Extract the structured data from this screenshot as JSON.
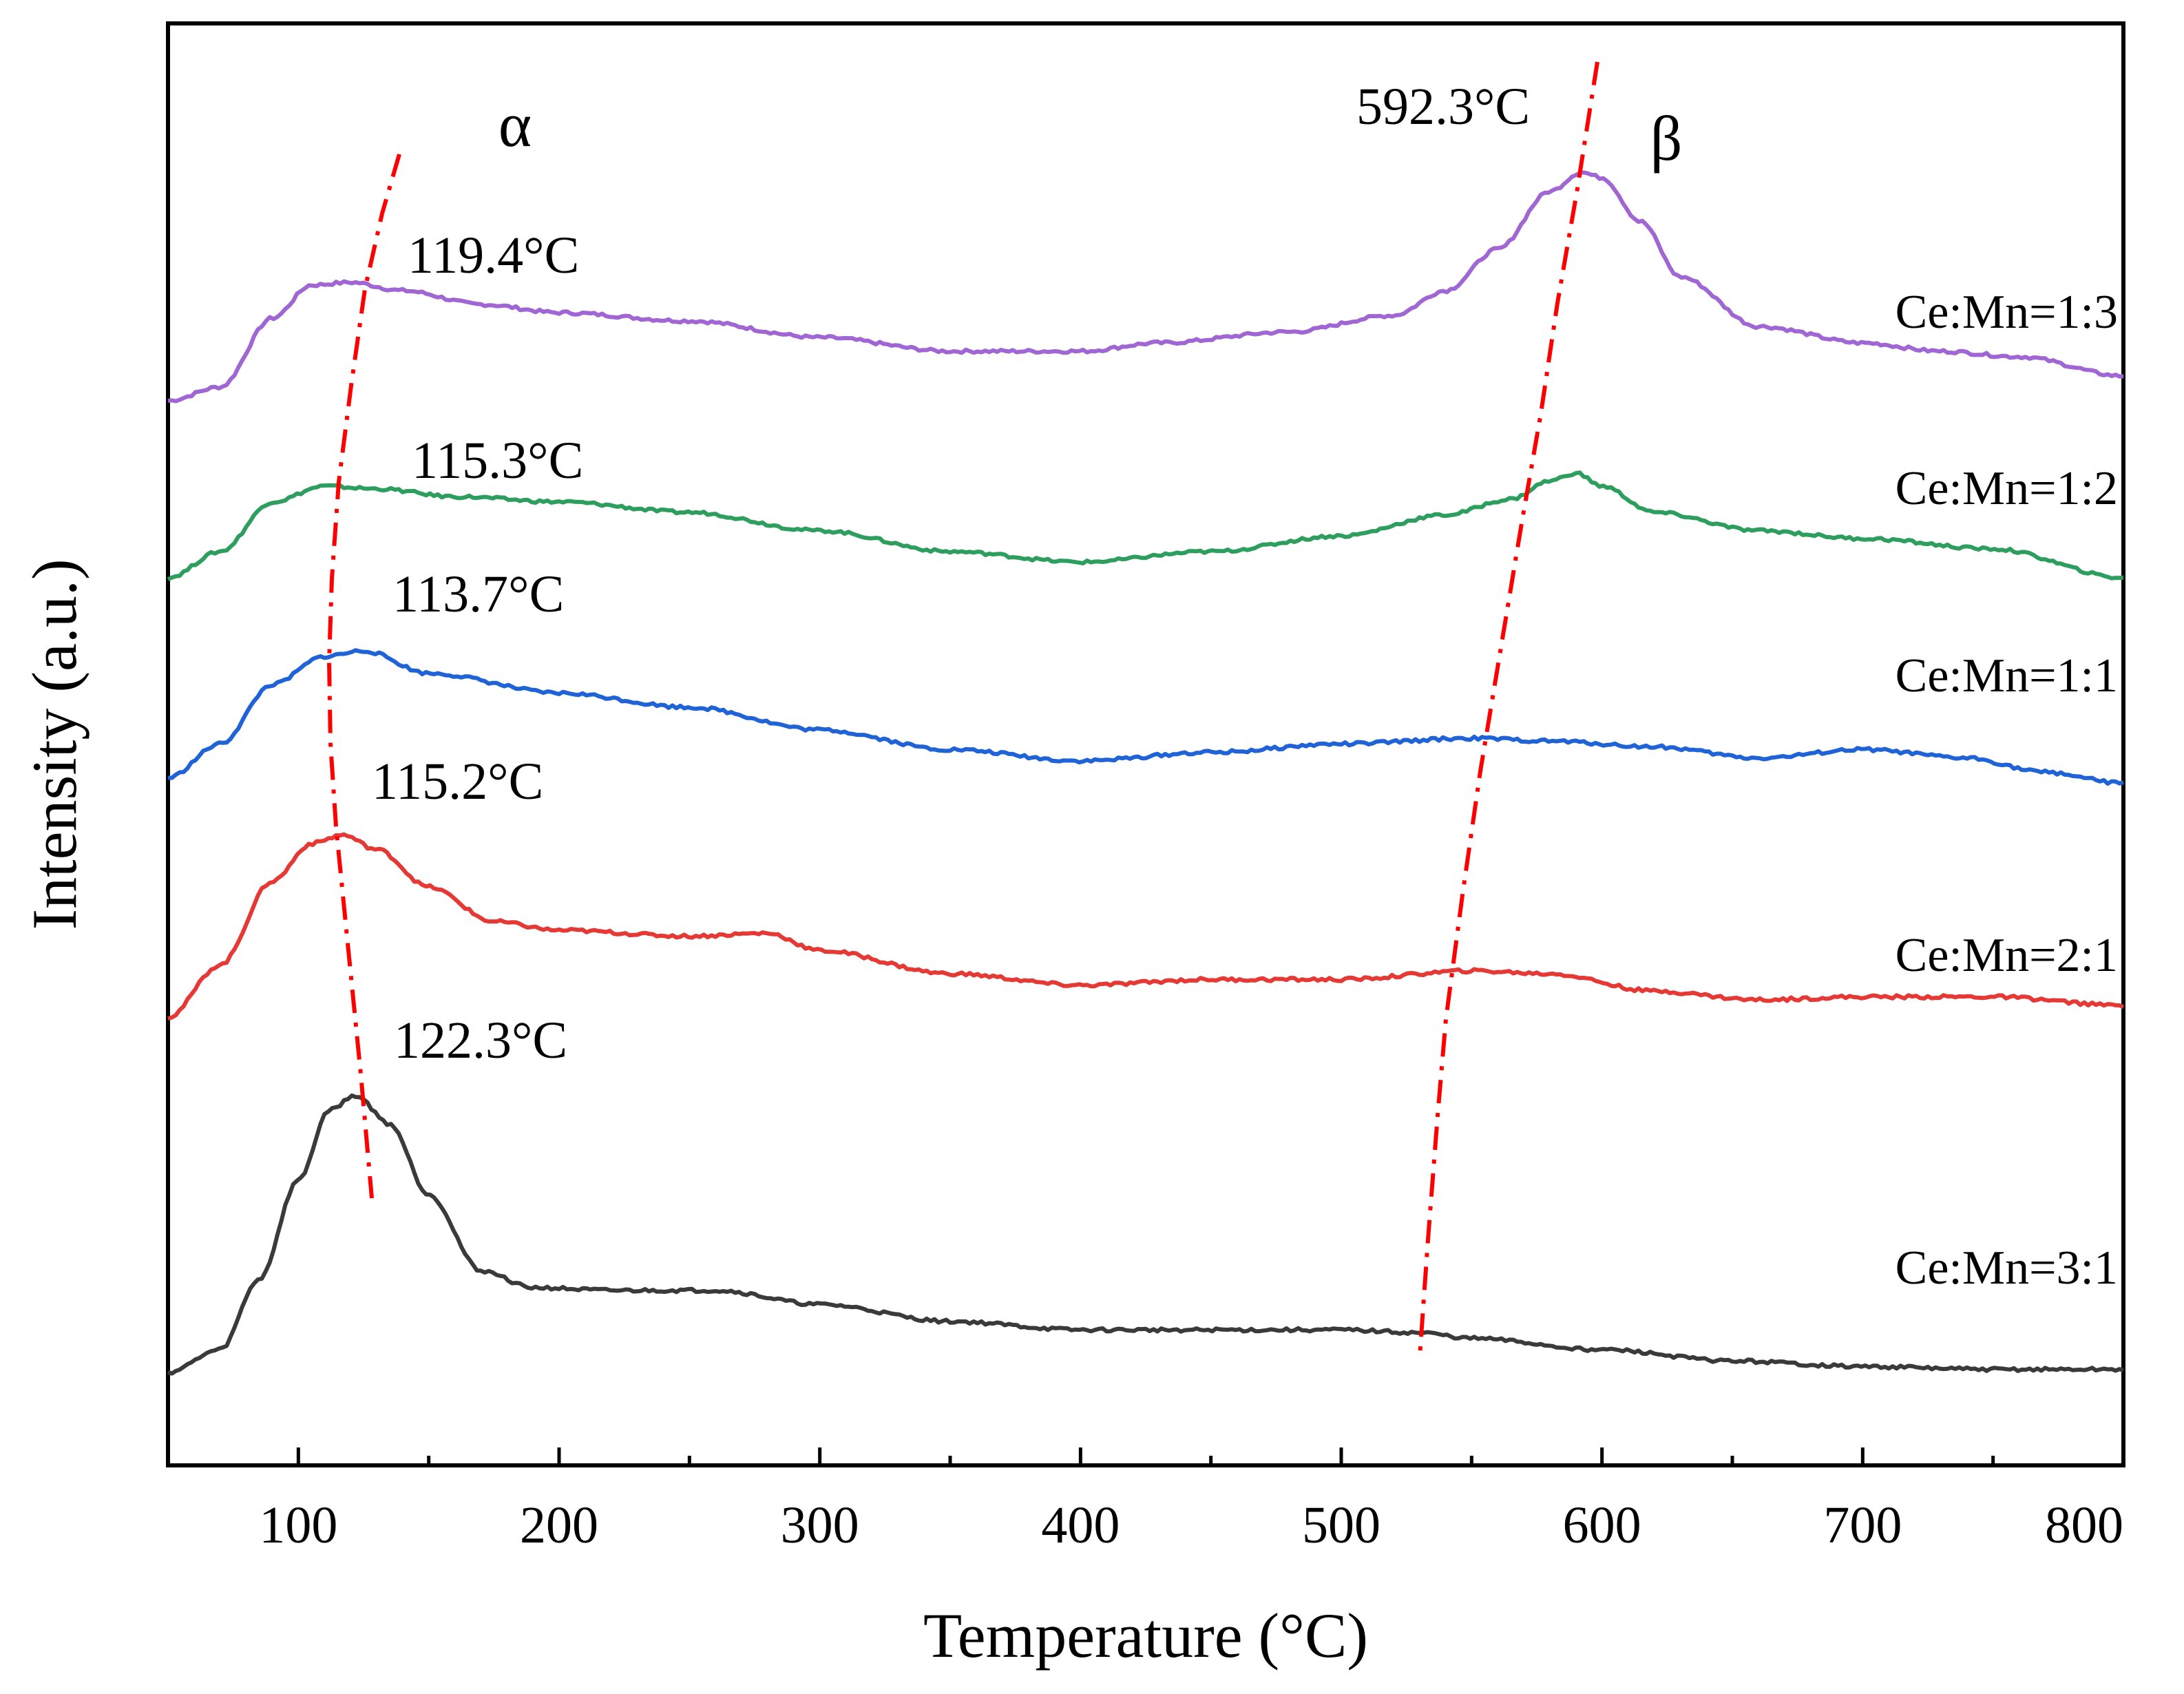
{
  "chart_data": {
    "type": "line",
    "xlabel": "Temperature (°C)",
    "ylabel": "Intensity (a.u.)",
    "xlim": [
      50,
      800
    ],
    "xticks": [
      100,
      200,
      300,
      400,
      500,
      600,
      700,
      800
    ],
    "yaxis_ticks_shown": false,
    "grid": false,
    "peak_groups": [
      {
        "name": "α",
        "label": "α",
        "color": "#ff0000",
        "style": "dash-dot"
      },
      {
        "name": "β",
        "label": "β",
        "color": "#ff0000",
        "style": "dash-dot"
      }
    ],
    "series": [
      {
        "name": "Ce:Mn=1:3",
        "label": "Ce:Mn=1:3",
        "color": "#a066d3",
        "alpha_peak": {
          "x": 119.4,
          "label": "119.4°C"
        },
        "beta_peak": {
          "x": 592.3,
          "label": "592.3°C"
        },
        "points": [
          [
            50,
            0.15
          ],
          [
            70,
            0.2
          ],
          [
            90,
            0.45
          ],
          [
            105,
            0.57
          ],
          [
            120,
            0.58
          ],
          [
            140,
            0.55
          ],
          [
            170,
            0.5
          ],
          [
            200,
            0.47
          ],
          [
            250,
            0.44
          ],
          [
            300,
            0.38
          ],
          [
            350,
            0.33
          ],
          [
            400,
            0.33
          ],
          [
            430,
            0.36
          ],
          [
            480,
            0.4
          ],
          [
            520,
            0.46
          ],
          [
            540,
            0.55
          ],
          [
            560,
            0.7
          ],
          [
            580,
            0.91
          ],
          [
            592,
            0.98
          ],
          [
            600,
            0.96
          ],
          [
            615,
            0.8
          ],
          [
            630,
            0.6
          ],
          [
            660,
            0.42
          ],
          [
            700,
            0.36
          ],
          [
            730,
            0.33
          ],
          [
            760,
            0.31
          ],
          [
            800,
            0.24
          ]
        ]
      },
      {
        "name": "Ce:Mn=1:2",
        "label": "Ce:Mn=1:2",
        "color": "#2e9e5e",
        "alpha_peak": {
          "x": 115.3,
          "label": "115.3°C"
        },
        "beta_peak": {
          "x": 587,
          "label": ""
        },
        "points": [
          [
            50,
            0.15
          ],
          [
            70,
            0.25
          ],
          [
            90,
            0.44
          ],
          [
            110,
            0.5
          ],
          [
            130,
            0.49
          ],
          [
            160,
            0.46
          ],
          [
            200,
            0.44
          ],
          [
            250,
            0.4
          ],
          [
            300,
            0.33
          ],
          [
            350,
            0.25
          ],
          [
            400,
            0.21
          ],
          [
            450,
            0.25
          ],
          [
            500,
            0.31
          ],
          [
            540,
            0.39
          ],
          [
            565,
            0.45
          ],
          [
            580,
            0.52
          ],
          [
            590,
            0.55
          ],
          [
            600,
            0.5
          ],
          [
            620,
            0.4
          ],
          [
            660,
            0.33
          ],
          [
            700,
            0.3
          ],
          [
            750,
            0.26
          ],
          [
            800,
            0.15
          ]
        ]
      },
      {
        "name": "Ce:Mn=1:1",
        "label": "Ce:Mn=1:1",
        "color": "#1f63d6",
        "alpha_peak": {
          "x": 113.7,
          "label": "113.7°C"
        },
        "beta_peak": {
          "x": 560,
          "label": ""
        },
        "points": [
          [
            50,
            0.15
          ],
          [
            70,
            0.27
          ],
          [
            90,
            0.48
          ],
          [
            110,
            0.58
          ],
          [
            125,
            0.6
          ],
          [
            150,
            0.52
          ],
          [
            200,
            0.45
          ],
          [
            250,
            0.4
          ],
          [
            300,
            0.32
          ],
          [
            350,
            0.25
          ],
          [
            400,
            0.21
          ],
          [
            450,
            0.24
          ],
          [
            500,
            0.27
          ],
          [
            550,
            0.29
          ],
          [
            580,
            0.28
          ],
          [
            620,
            0.26
          ],
          [
            660,
            0.22
          ],
          [
            700,
            0.25
          ],
          [
            740,
            0.22
          ],
          [
            770,
            0.17
          ],
          [
            800,
            0.13
          ]
        ]
      },
      {
        "name": "Ce:Mn=2:1",
        "label": "Ce:Mn=2:1",
        "color": "#e53935",
        "alpha_peak": {
          "x": 115.2,
          "label": "115.2°C"
        },
        "beta_peak": {
          "x": 555,
          "label": ""
        },
        "points": [
          [
            50,
            0.15
          ],
          [
            70,
            0.33
          ],
          [
            90,
            0.62
          ],
          [
            105,
            0.75
          ],
          [
            117,
            0.78
          ],
          [
            130,
            0.73
          ],
          [
            150,
            0.6
          ],
          [
            175,
            0.48
          ],
          [
            200,
            0.45
          ],
          [
            250,
            0.43
          ],
          [
            280,
            0.44
          ],
          [
            300,
            0.38
          ],
          [
            350,
            0.3
          ],
          [
            400,
            0.26
          ],
          [
            450,
            0.28
          ],
          [
            500,
            0.28
          ],
          [
            550,
            0.31
          ],
          [
            580,
            0.3
          ],
          [
            620,
            0.24
          ],
          [
            660,
            0.21
          ],
          [
            700,
            0.22
          ],
          [
            750,
            0.22
          ],
          [
            800,
            0.19
          ]
        ]
      },
      {
        "name": "Ce:Mn=3:1",
        "label": "Ce:Mn=3:1",
        "color": "#3a3a3a",
        "alpha_peak": {
          "x": 122.3,
          "label": "122.3°C"
        },
        "beta_peak": {
          "x": 540,
          "label": ""
        },
        "points": [
          [
            50,
            0.02
          ],
          [
            70,
            0.1
          ],
          [
            85,
            0.35
          ],
          [
            100,
            0.7
          ],
          [
            112,
            0.95
          ],
          [
            122,
            1.0
          ],
          [
            135,
            0.9
          ],
          [
            150,
            0.65
          ],
          [
            170,
            0.38
          ],
          [
            190,
            0.32
          ],
          [
            220,
            0.31
          ],
          [
            260,
            0.31
          ],
          [
            300,
            0.26
          ],
          [
            350,
            0.2
          ],
          [
            400,
            0.17
          ],
          [
            450,
            0.17
          ],
          [
            500,
            0.17
          ],
          [
            530,
            0.16
          ],
          [
            550,
            0.14
          ],
          [
            600,
            0.1
          ],
          [
            650,
            0.06
          ],
          [
            700,
            0.04
          ],
          [
            750,
            0.03
          ],
          [
            800,
            0.03
          ]
        ]
      }
    ]
  }
}
